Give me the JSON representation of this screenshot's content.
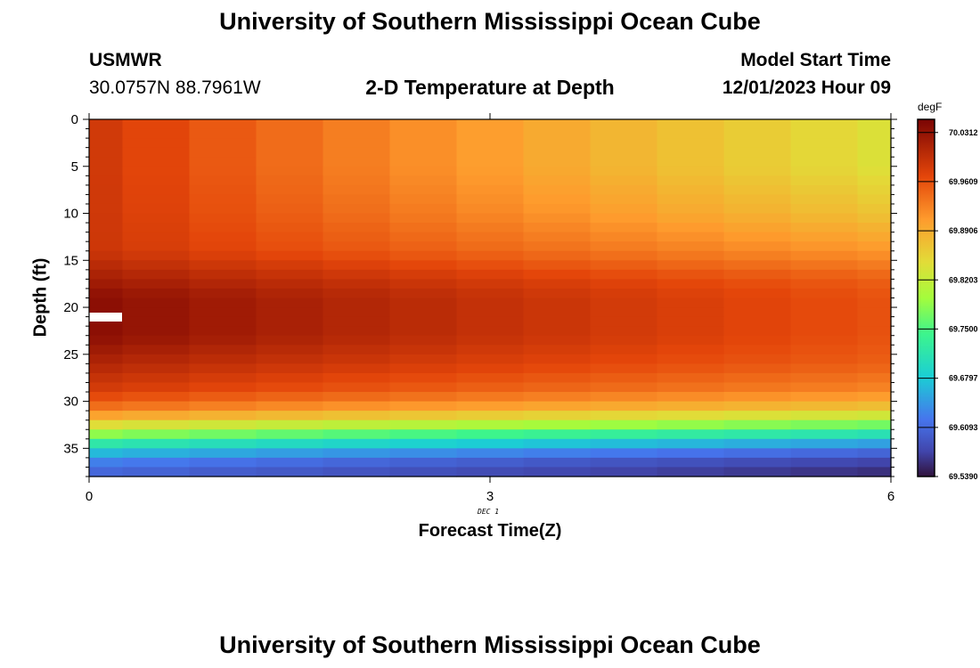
{
  "page": {
    "title": "University of Southern Mississippi Ocean Cube",
    "station": "USMWR",
    "coords": "30.0757N  88.7961W",
    "plot_title": "2-D Temperature at Depth",
    "start_label": "Model Start Time",
    "start_time": "12/01/2023 Hour 09",
    "second_title": "University of Southern Mississippi Ocean Cube"
  },
  "chart_data": {
    "type": "heatmap",
    "title": "2-D Temperature at Depth",
    "xlabel": "Forecast Time(Z)",
    "ylabel": "Depth (ft)",
    "x_date_label": "DEC 1",
    "xlim": [
      0,
      6
    ],
    "ylim": [
      0,
      38
    ],
    "y_inverted": true,
    "x_ticks": [
      0,
      3,
      6
    ],
    "y_ticks": [
      0,
      5,
      10,
      15,
      20,
      25,
      30,
      35
    ],
    "units": "degF",
    "colorbar": {
      "units": "degF",
      "min": 69.539,
      "max": 70.05,
      "ticks": [
        "70.0312",
        "69.9609",
        "69.8906",
        "69.8203",
        "69.7500",
        "69.6797",
        "69.6093",
        "69.5390"
      ],
      "stops": [
        [
          0.0,
          "#30123b"
        ],
        [
          0.07,
          "#4145ab"
        ],
        [
          0.16,
          "#4675ed"
        ],
        [
          0.28,
          "#1bcfd4"
        ],
        [
          0.4,
          "#3df58c"
        ],
        [
          0.5,
          "#a4fc3c"
        ],
        [
          0.6,
          "#e2dc38"
        ],
        [
          0.72,
          "#fe9b2d"
        ],
        [
          0.84,
          "#e4460a"
        ],
        [
          1.0,
          "#7a0403"
        ]
      ]
    },
    "time_columns": [
      0,
      0.5,
      1.0,
      1.5,
      2.0,
      2.5,
      3.0,
      3.5,
      4.0,
      4.5,
      5.0,
      5.5,
      6.0
    ],
    "depth_profile": {
      "depths_ft": [
        0,
        5,
        10,
        14,
        17,
        19,
        21,
        23,
        26,
        29,
        31,
        33,
        35,
        37
      ],
      "start_degF": [
        69.99,
        69.99,
        69.99,
        69.99,
        70.02,
        70.04,
        70.04,
        70.04,
        70.01,
        69.98,
        69.93,
        69.82,
        69.69,
        69.61
      ],
      "end_degF": [
        69.84,
        69.84,
        69.87,
        69.91,
        69.95,
        69.96,
        69.96,
        69.96,
        69.95,
        69.92,
        69.86,
        69.74,
        69.62,
        69.56
      ]
    }
  }
}
